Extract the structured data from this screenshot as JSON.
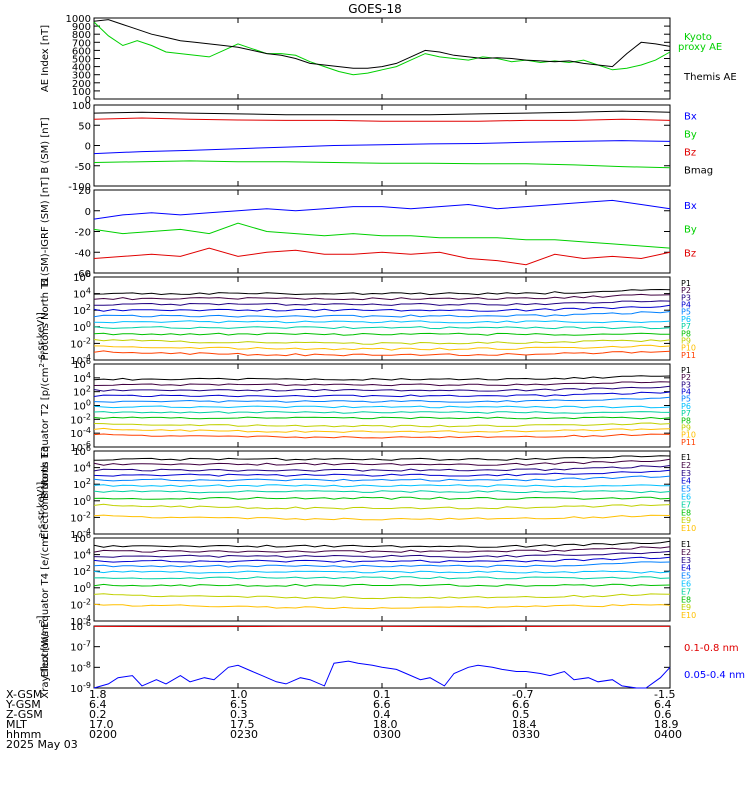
{
  "title": "GOES-18",
  "date_label": "2025 May 03",
  "footer_rows": [
    {
      "label": "X-GSM",
      "values": [
        "1.8",
        "1.0",
        "0.1",
        "-0.7",
        "-1.5"
      ]
    },
    {
      "label": "Y-GSM",
      "values": [
        "6.4",
        "6.5",
        "6.6",
        "6.6",
        "6.4"
      ]
    },
    {
      "label": "Z-GSM",
      "values": [
        "0.2",
        "0.3",
        "0.4",
        "0.5",
        "0.6"
      ]
    },
    {
      "label": "MLT",
      "values": [
        "17.0",
        "17.5",
        "18.0",
        "18.4",
        "18.9"
      ]
    },
    {
      "label": "hhmm",
      "values": [
        "0200",
        "0230",
        "0300",
        "0330",
        "0400"
      ]
    }
  ],
  "colors": {
    "black": "#000000",
    "red": "#e00000",
    "green": "#00d000",
    "blue": "#0000ff",
    "P": [
      "#000000",
      "#400040",
      "#200080",
      "#0000d0",
      "#0080ff",
      "#00c0ff",
      "#00d0a0",
      "#00c000",
      "#c0d000",
      "#ffc000",
      "#ff4000",
      "#c00000"
    ],
    "E": [
      "#000000",
      "#400040",
      "#200080",
      "#0000d0",
      "#0080ff",
      "#00c0ff",
      "#00d0a0",
      "#00c000",
      "#c0d000",
      "#ffc000",
      "#ff4000",
      "#c00000"
    ]
  },
  "chart_data": [
    {
      "type": "line",
      "ylabel": "AE Index [nT]",
      "ylim": [
        0,
        1000
      ],
      "yticks": [
        "0",
        "100",
        "200",
        "300",
        "400",
        "500",
        "600",
        "700",
        "800",
        "900",
        "1000"
      ],
      "xlim": [
        0,
        120
      ],
      "series": [
        {
          "name": "Kyoto proxy AE",
          "color": "#00d000",
          "x": [
            0,
            3,
            6,
            9,
            12,
            15,
            18,
            21,
            24,
            27,
            30,
            33,
            36,
            39,
            42,
            45,
            48,
            51,
            54,
            57,
            60,
            63,
            66,
            69,
            72,
            75,
            78,
            81,
            84,
            87,
            90,
            93,
            96,
            99,
            102,
            105,
            108,
            111,
            114,
            117,
            120
          ],
          "y": [
            950,
            780,
            660,
            720,
            660,
            580,
            560,
            540,
            520,
            600,
            680,
            620,
            560,
            560,
            540,
            460,
            400,
            340,
            300,
            320,
            360,
            400,
            480,
            560,
            520,
            500,
            480,
            520,
            500,
            460,
            480,
            450,
            470,
            450,
            480,
            420,
            360,
            380,
            420,
            480,
            580
          ]
        },
        {
          "name": "Themis AE",
          "color": "#000000",
          "x": [
            0,
            3,
            6,
            9,
            12,
            15,
            18,
            21,
            24,
            27,
            30,
            33,
            36,
            39,
            42,
            45,
            48,
            51,
            54,
            57,
            60,
            63,
            66,
            69,
            72,
            75,
            78,
            81,
            84,
            87,
            90,
            93,
            96,
            99,
            102,
            105,
            108,
            111,
            114,
            117,
            120
          ],
          "y": [
            960,
            980,
            920,
            860,
            800,
            760,
            720,
            700,
            680,
            660,
            640,
            600,
            560,
            540,
            500,
            440,
            420,
            400,
            380,
            380,
            400,
            440,
            520,
            600,
            580,
            540,
            520,
            500,
            510,
            500,
            480,
            470,
            460,
            470,
            440,
            420,
            400,
            560,
            700,
            680,
            650
          ]
        }
      ]
    },
    {
      "type": "line",
      "ylabel": "B (SM) [nT]",
      "ylim": [
        -100,
        100
      ],
      "yticks": [
        "-100",
        "-50",
        "0",
        "50",
        "100"
      ],
      "xlim": [
        0,
        120
      ],
      "series": [
        {
          "name": "Bx",
          "color": "#0000ff",
          "x": [
            0,
            10,
            20,
            30,
            40,
            50,
            60,
            70,
            80,
            90,
            100,
            110,
            120
          ],
          "y": [
            -20,
            -15,
            -12,
            -8,
            -4,
            0,
            2,
            4,
            5,
            8,
            10,
            12,
            10
          ]
        },
        {
          "name": "By",
          "color": "#00d000",
          "x": [
            0,
            10,
            20,
            30,
            40,
            50,
            60,
            70,
            80,
            90,
            100,
            110,
            120
          ],
          "y": [
            -42,
            -40,
            -38,
            -40,
            -40,
            -42,
            -44,
            -44,
            -45,
            -45,
            -48,
            -52,
            -55
          ]
        },
        {
          "name": "Bz",
          "color": "#e00000",
          "x": [
            0,
            10,
            20,
            30,
            40,
            50,
            60,
            70,
            80,
            90,
            100,
            110,
            120
          ],
          "y": [
            65,
            68,
            65,
            63,
            62,
            62,
            60,
            60,
            60,
            62,
            62,
            65,
            62
          ]
        },
        {
          "name": "Bmag",
          "color": "#000000",
          "x": [
            0,
            10,
            20,
            30,
            40,
            50,
            60,
            70,
            80,
            90,
            100,
            110,
            120
          ],
          "y": [
            80,
            82,
            80,
            78,
            76,
            76,
            76,
            76,
            78,
            80,
            82,
            85,
            82
          ]
        }
      ]
    },
    {
      "type": "line",
      "ylabel": "B (SM)-IGRF (SM) [nT]",
      "ylim": [
        -60,
        20
      ],
      "yticks": [
        "-60",
        "-40",
        "-20",
        "0",
        "20"
      ],
      "xlim": [
        0,
        120
      ],
      "series": [
        {
          "name": "Bx",
          "color": "#0000ff",
          "x": [
            0,
            6,
            12,
            18,
            24,
            30,
            36,
            42,
            48,
            54,
            60,
            66,
            72,
            78,
            84,
            90,
            96,
            102,
            108,
            114,
            120
          ],
          "y": [
            -8,
            -4,
            -2,
            -4,
            -2,
            0,
            2,
            0,
            2,
            4,
            4,
            2,
            4,
            6,
            2,
            4,
            6,
            8,
            10,
            6,
            2
          ]
        },
        {
          "name": "By",
          "color": "#00d000",
          "x": [
            0,
            6,
            12,
            18,
            24,
            30,
            36,
            42,
            48,
            54,
            60,
            66,
            72,
            78,
            84,
            90,
            96,
            102,
            108,
            114,
            120
          ],
          "y": [
            -18,
            -22,
            -20,
            -18,
            -22,
            -12,
            -20,
            -22,
            -24,
            -22,
            -24,
            -24,
            -26,
            -26,
            -26,
            -28,
            -28,
            -30,
            -32,
            -34,
            -36
          ]
        },
        {
          "name": "Bz",
          "color": "#e00000",
          "x": [
            0,
            6,
            12,
            18,
            24,
            30,
            36,
            42,
            48,
            54,
            60,
            66,
            72,
            78,
            84,
            90,
            96,
            102,
            108,
            114,
            120
          ],
          "y": [
            -46,
            -44,
            -42,
            -44,
            -36,
            -44,
            -40,
            -38,
            -42,
            -42,
            -40,
            -42,
            -40,
            -46,
            -48,
            -52,
            -42,
            -46,
            -44,
            -46,
            -40
          ]
        }
      ]
    },
    {
      "type": "line",
      "ylabel": "Protons North T1",
      "yscale": "log",
      "ylim_exp": [
        -4,
        6
      ],
      "yticks": [
        "10^-4",
        "10^-2",
        "10^0",
        "10^2",
        "10^4",
        "10^6"
      ],
      "xlim": [
        0,
        120
      ],
      "legend": [
        "P1",
        "P2",
        "P3",
        "P4",
        "P5",
        "P6",
        "P7",
        "P8",
        "P9",
        "P10",
        "P11"
      ],
      "levels_exp": [
        4.0,
        3.4,
        2.7,
        2.0,
        1.3,
        0.6,
        -0.1,
        -0.9,
        -1.6,
        -2.3,
        -3.0
      ]
    },
    {
      "type": "line",
      "ylabel": "Protons Equator T2 [p/(cm^2-s-sr-keV)]",
      "yscale": "log",
      "ylim_exp": [
        -6,
        6
      ],
      "yticks": [
        "10^-6",
        "10^-4",
        "10^-2",
        "10^0",
        "10^2",
        "10^4",
        "10^6"
      ],
      "xlim": [
        0,
        120
      ],
      "legend": [
        "P1",
        "P2",
        "P3",
        "P4",
        "P5",
        "P6",
        "P7",
        "P8",
        "P9",
        "P10",
        "P11"
      ],
      "levels_exp": [
        3.8,
        3.0,
        2.2,
        1.4,
        0.6,
        -0.2,
        -1.0,
        -1.8,
        -2.6,
        -3.4,
        -4.2
      ]
    },
    {
      "type": "line",
      "ylabel": "Electrons North T3",
      "yscale": "log",
      "ylim_exp": [
        -4,
        6
      ],
      "yticks": [
        "10^-4",
        "10^-2",
        "10^0",
        "10^2",
        "10^4",
        "10^6"
      ],
      "xlim": [
        0,
        120
      ],
      "legend": [
        "E1",
        "E2",
        "E3",
        "E4",
        "E5",
        "E6",
        "E7",
        "E8",
        "E9",
        "E10"
      ],
      "levels_exp": [
        5.0,
        4.4,
        3.7,
        3.1,
        2.5,
        1.8,
        1.1,
        0.3,
        -0.5,
        -1.8
      ]
    },
    {
      "type": "line",
      "ylabel": "Electrons Equator T4 [e/(cm^2-s-sr-keV)]",
      "yscale": "log",
      "ylim_exp": [
        -4,
        6
      ],
      "yticks": [
        "10^-4",
        "10^-2",
        "10^0",
        "10^2",
        "10^4",
        "10^6"
      ],
      "xlim": [
        0,
        120
      ],
      "legend": [
        "E1",
        "E2",
        "E3",
        "E4",
        "E5",
        "E6",
        "E7",
        "E8",
        "E9",
        "E10"
      ],
      "levels_exp": [
        5.0,
        4.4,
        3.8,
        3.2,
        2.6,
        1.9,
        1.2,
        0.3,
        -0.8,
        -2.0
      ]
    },
    {
      "type": "line",
      "ylabel": "Xray flux [W/m^2]",
      "yscale": "log",
      "ylim_exp": [
        -9,
        -6
      ],
      "yticks": [
        "10^-9",
        "10^-8",
        "10^-7",
        "10^-6"
      ],
      "xlim": [
        0,
        120
      ],
      "series": [
        {
          "name": "0.1-0.8 nm",
          "color": "#e00000",
          "x": [
            0,
            20,
            40,
            60,
            80,
            100,
            120
          ],
          "y_exp": [
            -6.02,
            -6.03,
            -6.02,
            -6.02,
            -6.03,
            -6.02,
            -6.02
          ]
        },
        {
          "name": "0.05-0.4 nm",
          "color": "#0000ff",
          "x": [
            0,
            3,
            5,
            8,
            10,
            13,
            15,
            18,
            20,
            23,
            25,
            28,
            30,
            33,
            35,
            38,
            40,
            43,
            45,
            48,
            50,
            53,
            55,
            58,
            60,
            63,
            65,
            68,
            70,
            73,
            75,
            78,
            80,
            83,
            85,
            88,
            90,
            93,
            95,
            98,
            100,
            103,
            105,
            108,
            110,
            113,
            115,
            118,
            120
          ],
          "y_exp": [
            -9.0,
            -8.8,
            -8.5,
            -8.4,
            -8.9,
            -8.6,
            -8.8,
            -8.4,
            -8.7,
            -8.5,
            -8.6,
            -8.0,
            -7.9,
            -8.2,
            -8.4,
            -8.7,
            -8.8,
            -8.5,
            -8.6,
            -8.9,
            -7.8,
            -7.7,
            -7.8,
            -7.9,
            -8.0,
            -8.1,
            -8.3,
            -8.6,
            -8.5,
            -8.9,
            -8.3,
            -8.0,
            -7.9,
            -8.0,
            -8.1,
            -8.2,
            -8.2,
            -8.3,
            -8.4,
            -8.2,
            -8.6,
            -8.5,
            -8.7,
            -8.6,
            -8.9,
            -9.0,
            -9.0,
            -8.5,
            -8.0
          ]
        }
      ]
    }
  ]
}
